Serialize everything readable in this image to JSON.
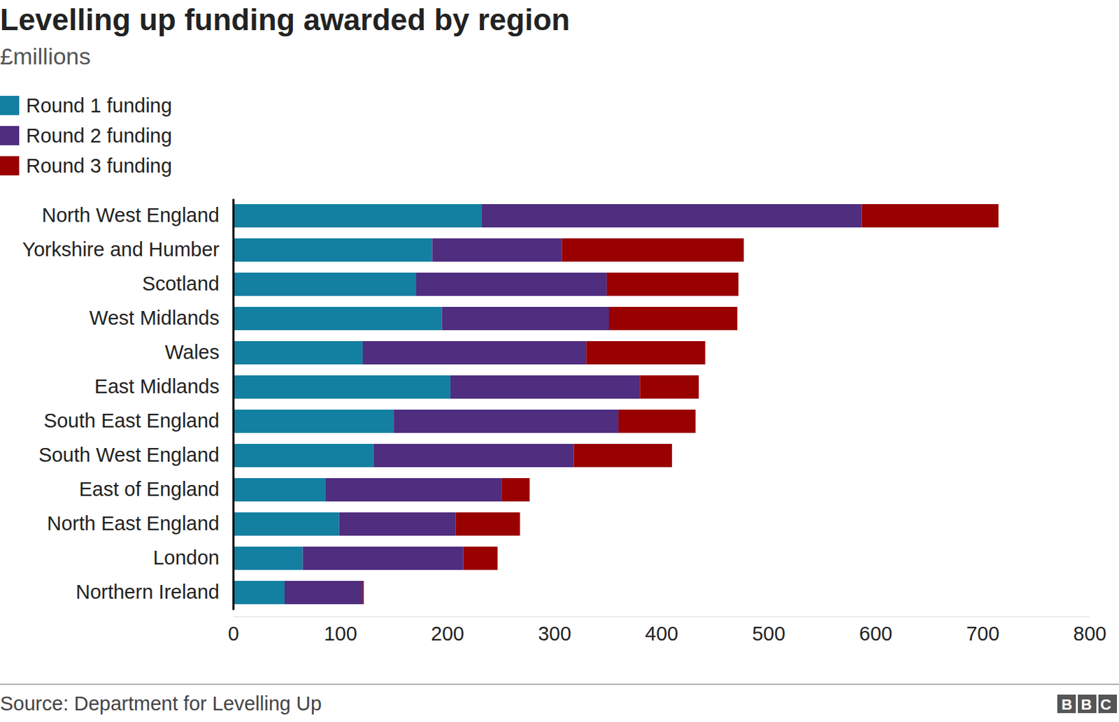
{
  "chart_data": {
    "type": "bar",
    "orientation": "horizontal",
    "stacked": true,
    "title": "Levelling up funding awarded by region",
    "subtitle": "£millions",
    "source": "Source: Department for Levelling Up",
    "logo": "BBC",
    "legend": "top-left",
    "grid": false,
    "categories": [
      "North West England",
      "Yorkshire and Humber",
      "Scotland",
      "West Midlands",
      "Wales",
      "East Midlands",
      "South East England",
      "South West England",
      "East of England",
      "North East England",
      "London",
      "Northern Ireland"
    ],
    "series": [
      {
        "name": "Round 1 funding",
        "color": "#1380a1",
        "values": [
          232,
          186,
          171,
          195,
          121,
          203,
          150,
          131,
          86,
          99,
          65,
          48
        ]
      },
      {
        "name": "Round 2 funding",
        "color": "#4f2d7f",
        "values": [
          355,
          121,
          178,
          156,
          209,
          177,
          210,
          187,
          165,
          109,
          150,
          73
        ]
      },
      {
        "name": "Round 3 funding",
        "color": "#990000",
        "values": [
          128,
          170,
          123,
          120,
          111,
          55,
          72,
          92,
          26,
          60,
          32,
          1
        ]
      }
    ],
    "xlim": [
      0,
      800
    ],
    "xticks": [
      0,
      100,
      200,
      300,
      400,
      500,
      600,
      700,
      800
    ]
  }
}
